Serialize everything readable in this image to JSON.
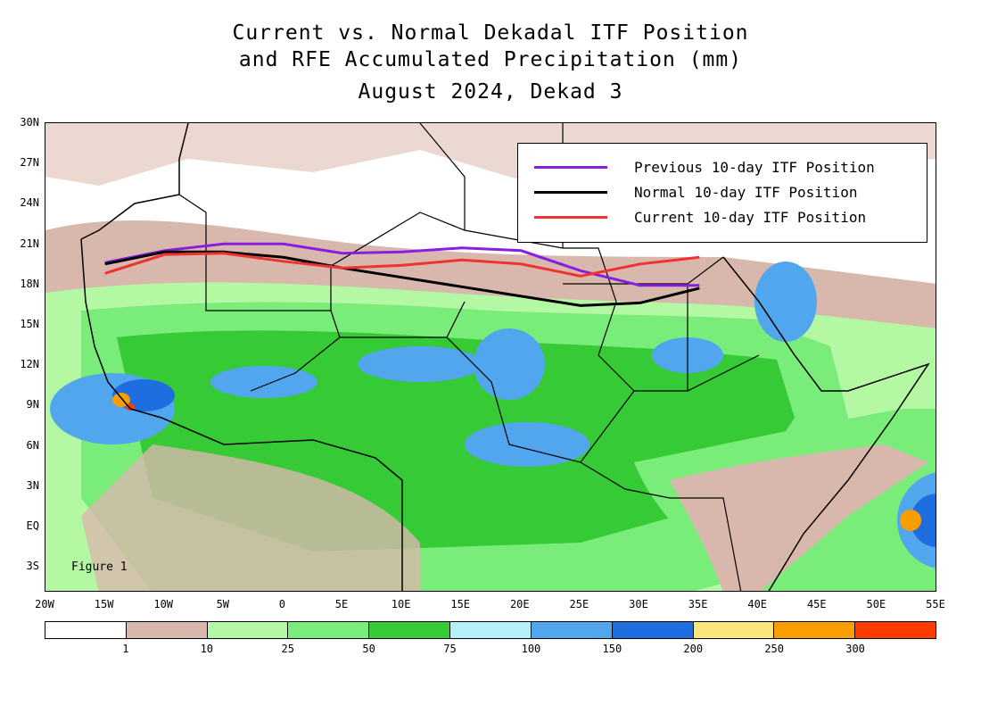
{
  "title": {
    "line1": "Current vs. Normal Dekadal ITF Position",
    "line2": "and RFE Accumulated Precipitation (mm)",
    "line3": "August 2024, Dekad 3"
  },
  "axes": {
    "lat_labels": [
      "30N",
      "27N",
      "24N",
      "21N",
      "18N",
      "15N",
      "12N",
      "9N",
      "6N",
      "3N",
      "EQ",
      "3S"
    ],
    "lon_labels": [
      "20W",
      "15W",
      "10W",
      "5W",
      "0",
      "5E",
      "10E",
      "15E",
      "20E",
      "25E",
      "30E",
      "35E",
      "40E",
      "45E",
      "50E",
      "55E"
    ]
  },
  "legend": {
    "items": [
      {
        "label": "Previous 10-day ITF Position",
        "color": "#8a1ee0"
      },
      {
        "label": "Normal 10-day ITF Position",
        "color": "#000000"
      },
      {
        "label": "Current 10-day ITF Position",
        "color": "#f03232"
      }
    ]
  },
  "figure_label": "Figure 1",
  "colorbar": {
    "colors": [
      "#ffffff",
      "#d8b8ac",
      "#b4f8a4",
      "#7aec7a",
      "#36ca36",
      "#b4f0fa",
      "#52a6ee",
      "#1e6ee0",
      "#fae67a",
      "#fa9e00",
      "#ff3c00"
    ],
    "labels": [
      "1",
      "10",
      "25",
      "50",
      "75",
      "100",
      "150",
      "200",
      "250",
      "300"
    ]
  },
  "itf_lines": {
    "previous": [
      [
        -15,
        19.6
      ],
      [
        -10,
        20.5
      ],
      [
        -5,
        21.0
      ],
      [
        0,
        21.0
      ],
      [
        5,
        20.3
      ],
      [
        10,
        20.4
      ],
      [
        15,
        20.7
      ],
      [
        20,
        20.5
      ],
      [
        25,
        19.0
      ],
      [
        30,
        17.9
      ],
      [
        35,
        17.9
      ]
    ],
    "normal": [
      [
        -15,
        19.5
      ],
      [
        -10,
        20.4
      ],
      [
        -5,
        20.4
      ],
      [
        0,
        20.0
      ],
      [
        5,
        19.2
      ],
      [
        10,
        18.5
      ],
      [
        15,
        17.8
      ],
      [
        20,
        17.1
      ],
      [
        25,
        16.4
      ],
      [
        30,
        16.6
      ],
      [
        35,
        17.7
      ]
    ],
    "current": [
      [
        -15,
        18.8
      ],
      [
        -10,
        20.2
      ],
      [
        -5,
        20.3
      ],
      [
        0,
        19.7
      ],
      [
        5,
        19.2
      ],
      [
        10,
        19.4
      ],
      [
        15,
        19.8
      ],
      [
        20,
        19.5
      ],
      [
        25,
        18.6
      ],
      [
        30,
        19.5
      ],
      [
        35,
        20.0
      ]
    ]
  }
}
